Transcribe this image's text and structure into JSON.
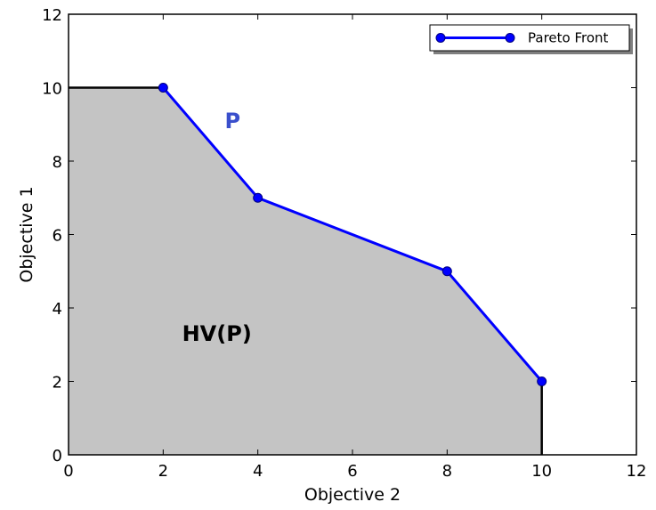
{
  "chart_data": {
    "type": "line",
    "title": "",
    "xlabel": "Objective 2",
    "ylabel": "Objective 1",
    "xlim": [
      0,
      12
    ],
    "ylim": [
      0,
      12
    ],
    "xticks": [
      "0",
      "2",
      "4",
      "6",
      "8",
      "10",
      "12"
    ],
    "yticks": [
      "0",
      "2",
      "4",
      "6",
      "8",
      "10",
      "12"
    ],
    "grid": false,
    "legend": {
      "placement": "top-right",
      "entries": [
        "Pareto Front"
      ]
    },
    "series": [
      {
        "name": "Pareto Front",
        "x": [
          2,
          4,
          8,
          10
        ],
        "y": [
          10,
          7,
          5,
          2
        ],
        "color": "#0000ff"
      }
    ],
    "shaded_region": {
      "description_label": "HV(P)",
      "boundary_x": [
        0,
        2,
        4,
        8,
        10,
        10,
        0
      ],
      "boundary_y": [
        10,
        10,
        7,
        5,
        2,
        0,
        0
      ],
      "color": "#c4c4c4"
    },
    "annotations": [
      {
        "text": "P",
        "x": 3.3,
        "y": 8.9,
        "color": "#3a4fcc"
      },
      {
        "text": "HV(P)",
        "x": 2.4,
        "y": 3.1,
        "color": "#000000"
      }
    ]
  }
}
